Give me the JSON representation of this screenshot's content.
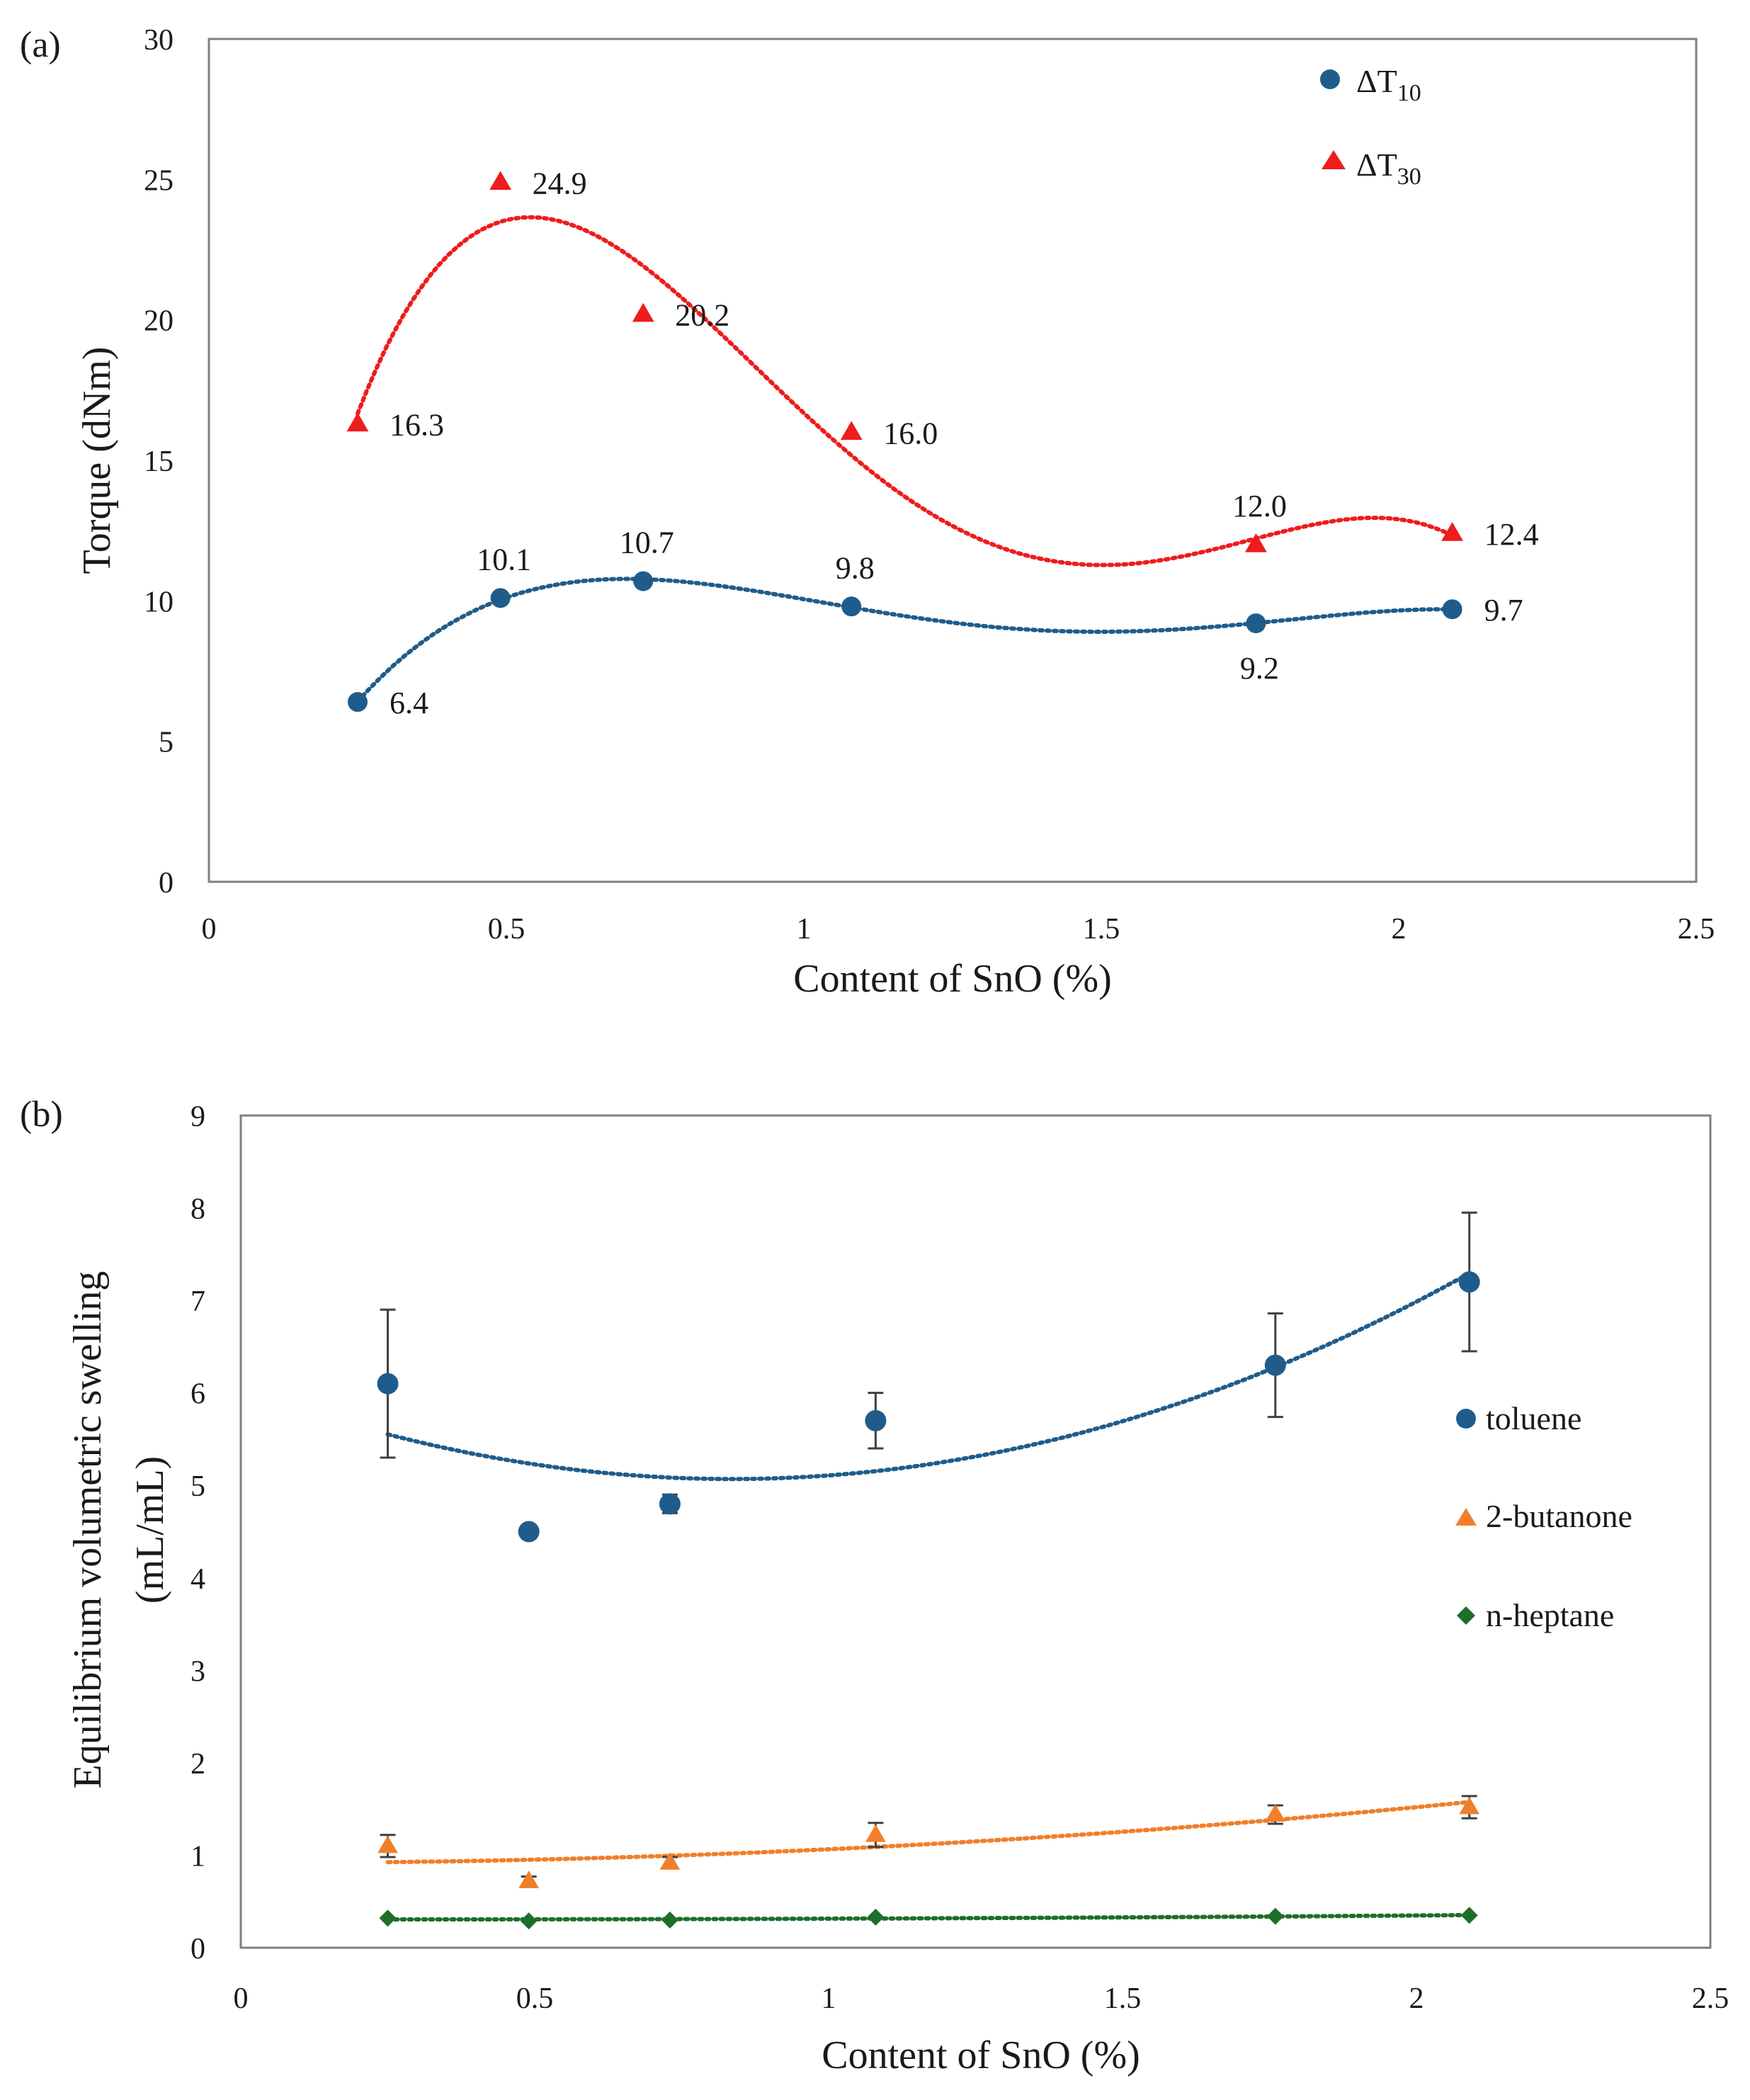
{
  "chart_data": [
    {
      "panel": "(a)",
      "type": "scatter",
      "xlabel": "Content of SnO (%)",
      "ylabel": "Torque (dNm)",
      "xlim": [
        0,
        2.5
      ],
      "ylim": [
        0,
        30
      ],
      "xticks": [
        "0",
        "0.5",
        "1",
        "1.5",
        "2",
        "2.5"
      ],
      "yticks": [
        "0",
        "5",
        "10",
        "15",
        "20",
        "25",
        "30"
      ],
      "legend_position": "top-right",
      "grid": false,
      "series": [
        {
          "name": "ΔT10",
          "legend_main": "ΔT",
          "legend_sub": "10",
          "marker": "circle",
          "color": "#1f5c8b",
          "trendline": "polynomial",
          "x": [
            0.25,
            0.49,
            0.73,
            1.08,
            1.76,
            2.09
          ],
          "y": [
            6.4,
            10.1,
            10.7,
            9.8,
            9.2,
            9.7
          ],
          "labels": [
            "6.4",
            "10.1",
            "10.7",
            "9.8",
            "9.2",
            "9.7"
          ],
          "label_positions": [
            "right",
            "top",
            "top",
            "top",
            "bottom",
            "right"
          ]
        },
        {
          "name": "ΔT30",
          "legend_main": "ΔT",
          "legend_sub": "30",
          "marker": "triangle",
          "color": "#ee1c1c",
          "trendline": "polynomial",
          "x": [
            0.25,
            0.49,
            0.73,
            1.08,
            1.76,
            2.09
          ],
          "y": [
            16.3,
            24.9,
            20.2,
            16.0,
            12.0,
            12.4
          ],
          "labels": [
            "16.3",
            "24.9",
            "20.2",
            "16.0",
            "12.0",
            "12.4"
          ],
          "label_positions": [
            "right",
            "right",
            "right",
            "right",
            "top",
            "right"
          ]
        }
      ]
    },
    {
      "panel": "(b)",
      "type": "scatter",
      "xlabel": "Content of SnO (%)",
      "ylabel_line1": "Equilibrium  volumetric swelling",
      "ylabel_line2": "(mL/mL)",
      "xlim": [
        0,
        2.5
      ],
      "ylim": [
        0,
        9
      ],
      "xticks": [
        "0",
        "0.5",
        "1",
        "1.5",
        "2",
        "2.5"
      ],
      "yticks": [
        "0",
        "1",
        "2",
        "3",
        "4",
        "5",
        "6",
        "7",
        "8",
        "9"
      ],
      "legend_position": "right",
      "grid": false,
      "series": [
        {
          "name": "toluene",
          "marker": "circle",
          "color": "#1f5c8b",
          "trendline": "polynomial",
          "x": [
            0.25,
            0.49,
            0.73,
            1.08,
            1.76,
            2.09
          ],
          "y": [
            6.1,
            4.5,
            4.8,
            5.7,
            6.3,
            7.2
          ],
          "error": [
            0.8,
            null,
            0.1,
            0.3,
            0.56,
            0.75
          ]
        },
        {
          "name": "2-butanone",
          "marker": "triangle",
          "color": "#f07f2a",
          "trendline": "polynomial",
          "x": [
            0.25,
            0.49,
            0.73,
            1.08,
            1.76,
            2.09
          ],
          "y": [
            1.1,
            0.72,
            0.92,
            1.22,
            1.44,
            1.52
          ],
          "error": [
            0.12,
            0.05,
            0.06,
            0.13,
            0.1,
            0.12
          ]
        },
        {
          "name": "n-heptane",
          "marker": "diamond",
          "color": "#1d6e2b",
          "trendline": "polynomial",
          "x": [
            0.25,
            0.49,
            0.73,
            1.08,
            1.76,
            2.09
          ],
          "y": [
            0.32,
            0.29,
            0.3,
            0.33,
            0.34,
            0.35
          ],
          "error": [
            null,
            null,
            null,
            null,
            null,
            null
          ]
        }
      ]
    }
  ]
}
